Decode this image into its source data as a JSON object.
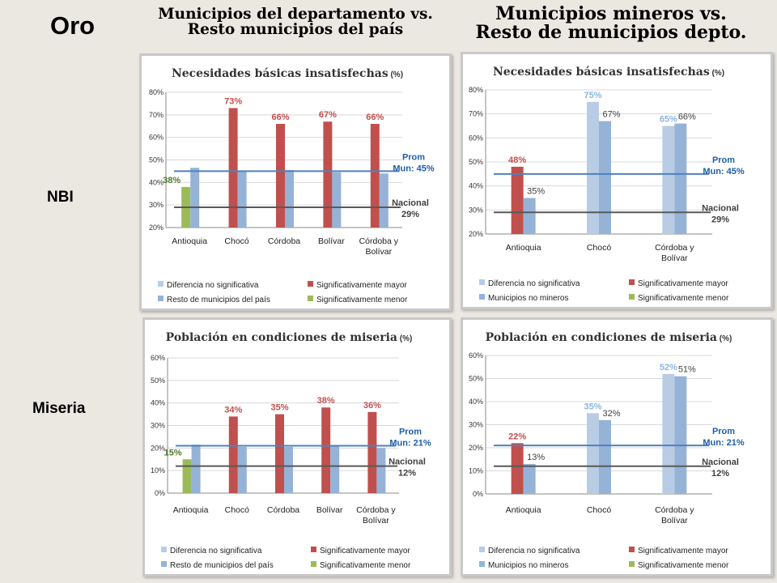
{
  "slide": {
    "title": "Oro",
    "row_labels": [
      "NBI",
      "Miseria"
    ],
    "col_headers": [
      [
        "Municipios del departamento vs.",
        "Resto municipios del país"
      ],
      [
        "Municipios mineros vs.",
        "Resto de municipios depto."
      ]
    ]
  },
  "colors": {
    "sig_mayor": "#c0504d",
    "sig_menor": "#9bbb59",
    "no_sig": "#b8cce4",
    "resto": "#95b3d7",
    "prom_line": "#4f81bd",
    "nacional_line": "#595959",
    "prom_text": "#1f5fa8",
    "nacional_text": "#404040"
  },
  "chart_data": [
    {
      "type": "bar",
      "title": "Necesidades básicas insatisfechas",
      "title_unit": "(%)",
      "categories": [
        "Antioquia",
        "Chocó",
        "Córdoba",
        "Bolívar",
        "Córdoba y Bolívar"
      ],
      "ylim": [
        20,
        80
      ],
      "yticks": [
        "20%",
        "30%",
        "40%",
        "50%",
        "60%",
        "70%",
        "80%"
      ],
      "series": [
        {
          "name": "Municipios del departamento",
          "values": [
            38,
            73,
            66,
            67,
            66
          ],
          "classes": [
            "menor",
            "mayor",
            "mayor",
            "mayor",
            "mayor"
          ],
          "labels": [
            "38%",
            "73%",
            "66%",
            "67%",
            "66%"
          ]
        },
        {
          "name": "Resto de municipios del país",
          "values": [
            46.5,
            45,
            45.5,
            44.5,
            44
          ],
          "labels": null
        }
      ],
      "reference_lines": [
        {
          "name": "Prom Mun",
          "value": 45,
          "label": "Prom Mun: 45%",
          "label_lines": [
            "Prom",
            "Mun: 45%"
          ],
          "style": "prom"
        },
        {
          "name": "Nacional",
          "value": 29,
          "label": "Nacional 29%",
          "label_lines": [
            "Nacional",
            "29%"
          ],
          "style": "nacional"
        }
      ],
      "legend": [
        "Diferencia no significativa",
        "Significativamente mayor",
        "Resto de municipios del país",
        "Significativamente menor"
      ]
    },
    {
      "type": "bar",
      "title": "Necesidades básicas insatisfechas",
      "title_unit": "(%)",
      "categories": [
        "Antioquia",
        "Chocó",
        "Córdoba y Bolívar"
      ],
      "ylim": [
        20,
        80
      ],
      "yticks": [
        "20%",
        "30%",
        "40%",
        "50%",
        "60%",
        "70%",
        "80%"
      ],
      "series": [
        {
          "name": "Municipios mineros",
          "values": [
            48,
            75,
            65
          ],
          "classes": [
            "mayor",
            "nosig",
            "nosig"
          ],
          "labels": [
            "48%",
            "75%",
            "65%"
          ]
        },
        {
          "name": "Municipios no mineros",
          "values": [
            35,
            67,
            66
          ],
          "labels": [
            "35%",
            "67%",
            "66%"
          ]
        }
      ],
      "reference_lines": [
        {
          "name": "Prom Mun",
          "value": 45,
          "label": "Prom Mun: 45%",
          "label_lines": [
            "Prom",
            "Mun: 45%"
          ],
          "style": "prom"
        },
        {
          "name": "Nacional",
          "value": 29,
          "label": "Nacional 29%",
          "label_lines": [
            "Nacional",
            "29%"
          ],
          "style": "nacional"
        }
      ],
      "legend": [
        "Diferencia no significativa",
        "Significativamente mayor",
        "Municipios no mineros",
        "Significativamente menor"
      ]
    },
    {
      "type": "bar",
      "title": "Población en condiciones de miseria",
      "title_unit": "(%)",
      "categories": [
        "Antioquia",
        "Chocó",
        "Córdoba",
        "Bolívar",
        "Córdoba y Bolívar"
      ],
      "ylim": [
        0,
        60
      ],
      "yticks": [
        "0%",
        "10%",
        "20%",
        "30%",
        "40%",
        "50%",
        "60%"
      ],
      "series": [
        {
          "name": "Municipios del departamento",
          "values": [
            15,
            34,
            35,
            38,
            36
          ],
          "classes": [
            "menor",
            "mayor",
            "mayor",
            "mayor",
            "mayor"
          ],
          "labels": [
            "15%",
            "34%",
            "35%",
            "38%",
            "36%"
          ]
        },
        {
          "name": "Resto de municipios del país",
          "values": [
            21.5,
            20.5,
            20.5,
            21,
            20
          ],
          "labels": null
        }
      ],
      "reference_lines": [
        {
          "name": "Prom Mun",
          "value": 21,
          "label": "Prom Mun: 21%",
          "label_lines": [
            "Prom",
            "Mun: 21%"
          ],
          "style": "prom"
        },
        {
          "name": "Nacional",
          "value": 12,
          "label": "Nacional 12%",
          "label_lines": [
            "Nacional",
            "12%"
          ],
          "style": "nacional"
        }
      ],
      "legend": [
        "Diferencia no significativa",
        "Significativamente mayor",
        "Resto de municipios del país",
        "Significativamente menor"
      ]
    },
    {
      "type": "bar",
      "title": "Población en condiciones de miseria",
      "title_unit": "(%)",
      "categories": [
        "Antioquia",
        "Chocó",
        "Córdoba y Bolívar"
      ],
      "ylim": [
        0,
        60
      ],
      "yticks": [
        "0%",
        "10%",
        "20%",
        "30%",
        "40%",
        "50%",
        "60%"
      ],
      "series": [
        {
          "name": "Municipios mineros",
          "values": [
            22,
            35,
            52
          ],
          "classes": [
            "mayor",
            "nosig",
            "nosig"
          ],
          "labels": [
            "22%",
            "35%",
            "52%"
          ]
        },
        {
          "name": "Municipios no mineros",
          "values": [
            13,
            32,
            51
          ],
          "labels": [
            "13%",
            "32%",
            "51%"
          ]
        }
      ],
      "reference_lines": [
        {
          "name": "Prom Mun",
          "value": 21,
          "label": "Prom Mun: 21%",
          "label_lines": [
            "Prom",
            "Mun: 21%"
          ],
          "style": "prom"
        },
        {
          "name": "Nacional",
          "value": 12,
          "label": "Nacional 12%",
          "label_lines": [
            "Nacional",
            "12%"
          ],
          "style": "nacional"
        }
      ],
      "legend": [
        "Diferencia no significativa",
        "Significativamente mayor",
        "Municipios no mineros",
        "Significativamente menor"
      ]
    }
  ]
}
